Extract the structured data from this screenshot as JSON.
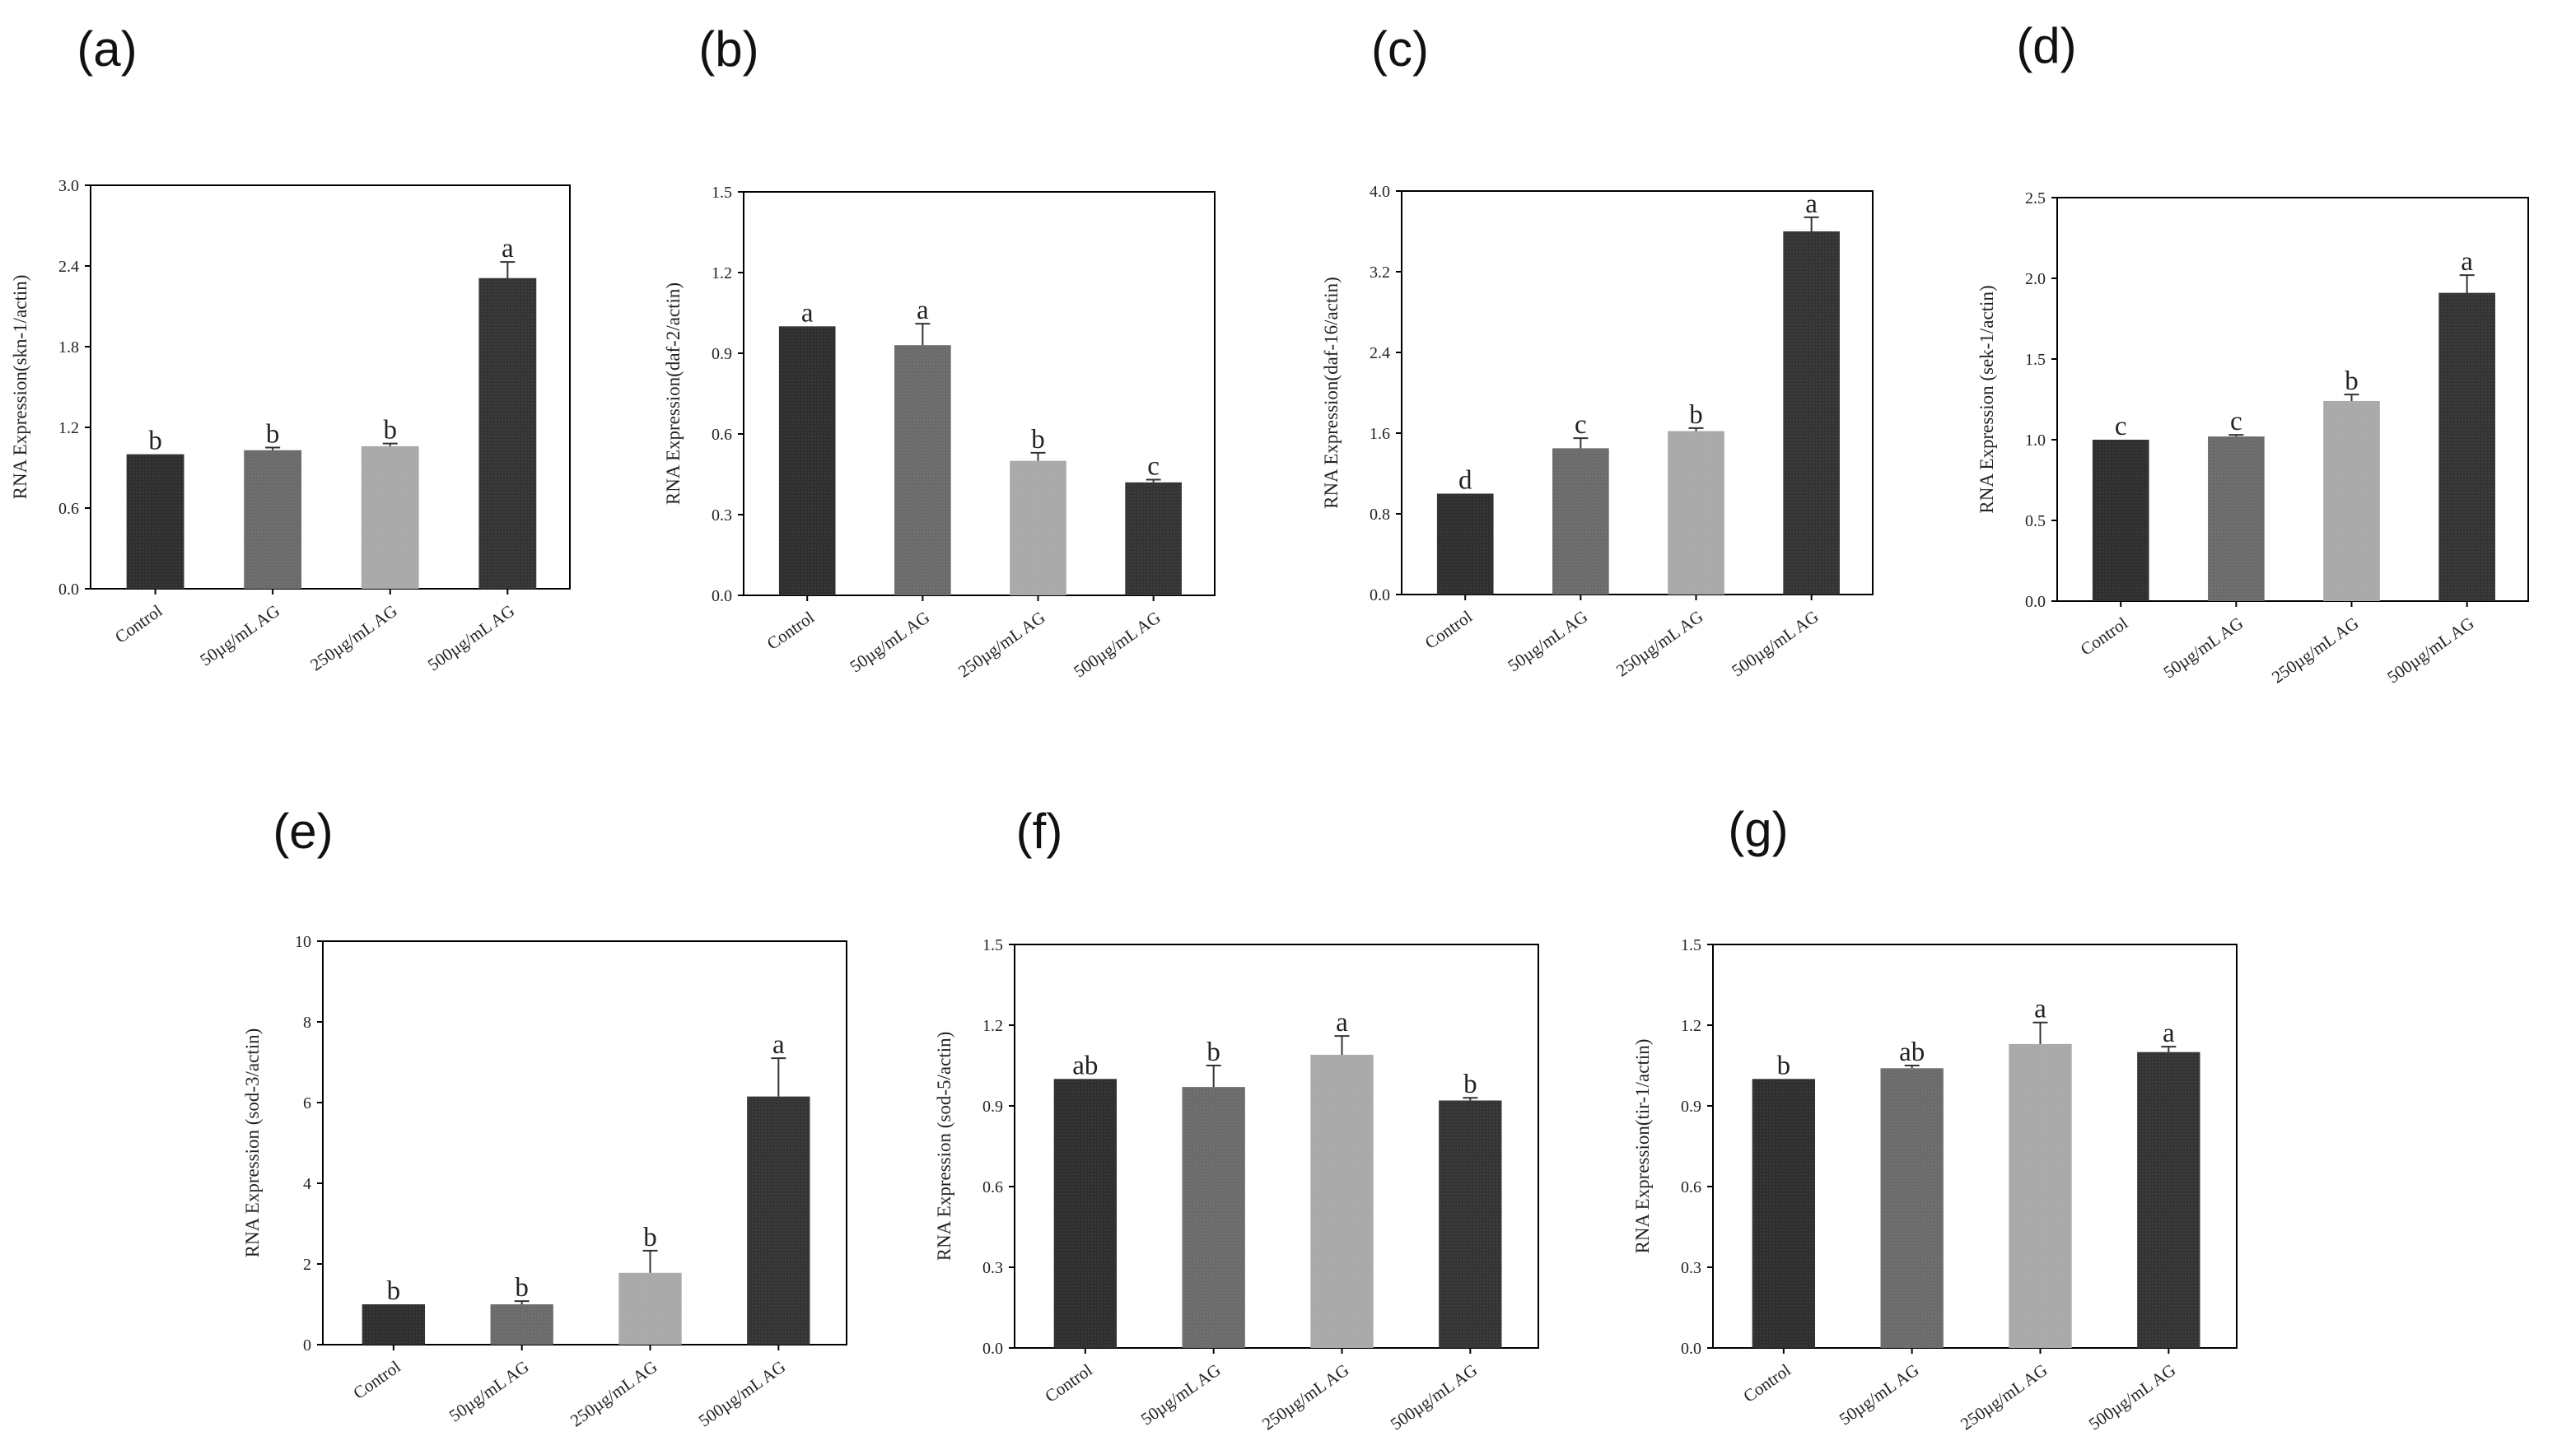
{
  "colors": {
    "Control": "#2f2f2f",
    "50µg/mL AG": "#6b6b6b",
    "250µg/mL AG": "#a9a9a9",
    "500µg/mL AG": "#343434",
    "axis": "#000000",
    "error_bar": "#333333"
  },
  "chart_data": [
    {
      "panel": "(a)",
      "type": "bar",
      "categories": [
        "Control",
        "50µg/mL AG",
        "250µg/mL AG",
        "500µg/mL AG"
      ],
      "values": [
        1.0,
        1.03,
        1.06,
        2.31
      ],
      "errors": [
        0.0,
        0.02,
        0.02,
        0.12
      ],
      "significance": [
        "b",
        "b",
        "b",
        "a"
      ],
      "ylabel": "RNA Expression(skn-1/actin)",
      "ylim": [
        0,
        3.0
      ],
      "yticks": [
        "0.0",
        "0.6",
        "1.2",
        "1.8",
        "2.4",
        "3.0"
      ]
    },
    {
      "panel": "(b)",
      "type": "bar",
      "categories": [
        "Control",
        "50µg/mL AG",
        "250µg/mL AG",
        "500µg/mL AG"
      ],
      "values": [
        1.0,
        0.93,
        0.5,
        0.42
      ],
      "errors": [
        0.0,
        0.08,
        0.03,
        0.01
      ],
      "significance": [
        "a",
        "a",
        "b",
        "c"
      ],
      "ylabel": "RNA Expression(daf-2/actin)",
      "ylim": [
        0,
        1.5
      ],
      "yticks": [
        "0.0",
        "0.3",
        "0.6",
        "0.9",
        "1.2",
        "1.5"
      ]
    },
    {
      "panel": "(c)",
      "type": "bar",
      "categories": [
        "Control",
        "50µg/mL AG",
        "250µg/mL AG",
        "500µg/mL AG"
      ],
      "values": [
        1.0,
        1.45,
        1.62,
        3.6
      ],
      "errors": [
        0.0,
        0.1,
        0.03,
        0.14
      ],
      "significance": [
        "d",
        "c",
        "b",
        "a"
      ],
      "ylabel": "RNA Expression(daf-16/actin)",
      "ylim": [
        0,
        4.0
      ],
      "yticks": [
        "0.0",
        "0.8",
        "1.6",
        "2.4",
        "3.2",
        "4.0"
      ]
    },
    {
      "panel": "(d)",
      "type": "bar",
      "categories": [
        "Control",
        "50µg/mL AG",
        "250µg/mL AG",
        "500µg/mL AG"
      ],
      "values": [
        1.0,
        1.02,
        1.24,
        1.91
      ],
      "errors": [
        0.0,
        0.01,
        0.04,
        0.11
      ],
      "significance": [
        "c",
        "c",
        "b",
        "a"
      ],
      "ylabel": "RNA Expression (sek-1/actin)",
      "ylim": [
        0,
        2.5
      ],
      "yticks": [
        "0.0",
        "0.5",
        "1.0",
        "1.5",
        "2.0",
        "2.5"
      ]
    },
    {
      "panel": "(e)",
      "type": "bar",
      "categories": [
        "Control",
        "50µg/mL AG",
        "250µg/mL AG",
        "500µg/mL AG"
      ],
      "values": [
        1.0,
        1.0,
        1.78,
        6.15
      ],
      "errors": [
        0.0,
        0.08,
        0.55,
        0.95
      ],
      "significance": [
        "b",
        "b",
        "b",
        "a"
      ],
      "ylabel": "RNA Expression (sod-3/actin)",
      "ylim": [
        0,
        10
      ],
      "yticks": [
        "0",
        "2",
        "4",
        "6",
        "8",
        "10"
      ]
    },
    {
      "panel": "(f)",
      "type": "bar",
      "categories": [
        "Control",
        "50µg/mL AG",
        "250µg/mL AG",
        "500µg/mL AG"
      ],
      "values": [
        1.0,
        0.97,
        1.09,
        0.92
      ],
      "errors": [
        0.0,
        0.08,
        0.07,
        0.01
      ],
      "significance": [
        "ab",
        "b",
        "a",
        "b"
      ],
      "ylabel": "RNA Expression (sod-5/actin)",
      "ylim": [
        0,
        1.5
      ],
      "yticks": [
        "0.0",
        "0.3",
        "0.6",
        "0.9",
        "1.2",
        "1.5"
      ]
    },
    {
      "panel": "(g)",
      "type": "bar",
      "categories": [
        "Control",
        "50µg/mL AG",
        "250µg/mL AG",
        "500µg/mL AG"
      ],
      "values": [
        1.0,
        1.04,
        1.13,
        1.1
      ],
      "errors": [
        0.0,
        0.01,
        0.08,
        0.02
      ],
      "significance": [
        "b",
        "ab",
        "a",
        "a"
      ],
      "ylabel": "RNA Expression(tir-1/actin)",
      "ylim": [
        0,
        1.5
      ],
      "yticks": [
        "0.0",
        "0.3",
        "0.6",
        "0.9",
        "1.2",
        "1.5"
      ]
    }
  ]
}
